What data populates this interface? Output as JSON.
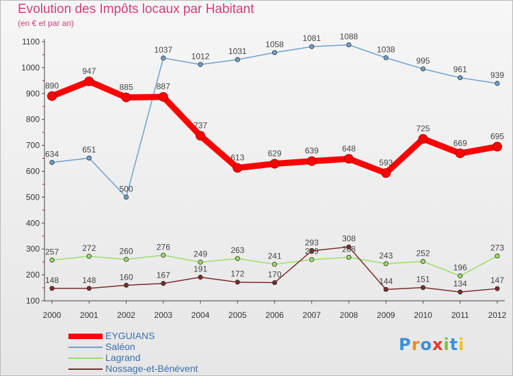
{
  "header": {
    "title": "Evolution des Impôts locaux par Habitant",
    "subtitle": "(en € et par an)"
  },
  "logo": {
    "text": "Proxiti",
    "colors": [
      "#3a8fd8",
      "#f08a24",
      "#3a8fd8",
      "#e23a2a",
      "#7cc242",
      "#3a8fd8",
      "#f0c020"
    ]
  },
  "chart_data": {
    "type": "line",
    "x": [
      "2000",
      "2001",
      "2002",
      "2003",
      "2004",
      "2005",
      "2006",
      "2007",
      "2008",
      "2009",
      "2010",
      "2011",
      "2012"
    ],
    "ylim": [
      100,
      1100
    ],
    "yticks": [
      100,
      200,
      300,
      400,
      500,
      600,
      700,
      800,
      900,
      1000,
      1100
    ],
    "grid": false,
    "legend_position": "bottom-left",
    "series": [
      {
        "name": "EYGUIANS",
        "color": "#ff0000",
        "emphasis": true,
        "values": [
          890,
          947,
          885,
          887,
          737,
          613,
          629,
          639,
          648,
          593,
          725,
          669,
          695
        ]
      },
      {
        "name": "Saléon",
        "color": "#6f9fcf",
        "values": [
          634,
          651,
          500,
          1037,
          1012,
          1031,
          1058,
          1081,
          1088,
          1038,
          995,
          961,
          939
        ]
      },
      {
        "name": "Lagrand",
        "color": "#99dd66",
        "values": [
          257,
          272,
          260,
          276,
          249,
          263,
          241,
          259,
          268,
          243,
          252,
          196,
          273
        ]
      },
      {
        "name": "Nossage-et-Bénévent",
        "color": "#7a2b2b",
        "values": [
          148,
          148,
          160,
          167,
          191,
          172,
          170,
          293,
          308,
          144,
          151,
          134,
          147
        ]
      }
    ]
  }
}
